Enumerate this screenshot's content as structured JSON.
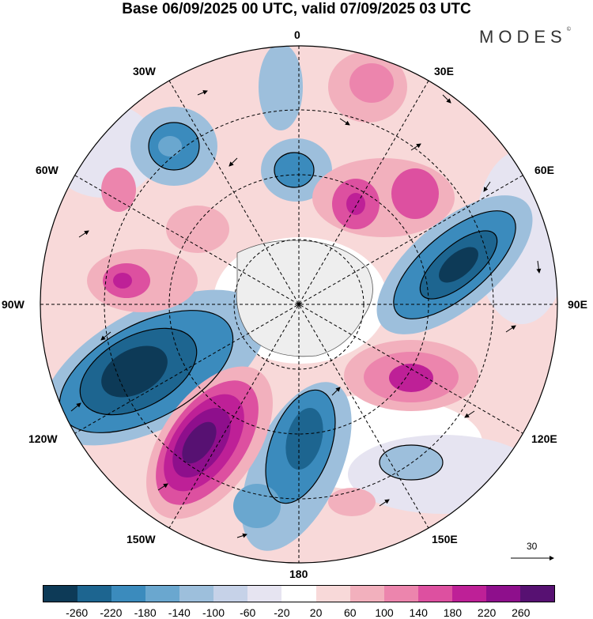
{
  "title": "Base 06/09/2025 00 UTC, valid 07/09/2025 03 UTC",
  "brand": "MODES",
  "brand_mark": "©",
  "longitude_labels": {
    "l0": "0",
    "l30e": "30E",
    "l60e": "60E",
    "l90e": "90E",
    "l120e": "120E",
    "l150e": "150E",
    "l180": "180",
    "l150w": "150W",
    "l120w": "120W",
    "l90w": "90W",
    "l60w": "60W",
    "l30w": "30W"
  },
  "reference_vector": {
    "label": "30"
  },
  "colorbar": {
    "colors": [
      "#0d3a57",
      "#1d6590",
      "#3b8bbd",
      "#6aa7cf",
      "#9dbfdc",
      "#c6d2e8",
      "#e6e4f1",
      "#ffffff",
      "#f8d9d9",
      "#f2b0bd",
      "#ec85ad",
      "#dd50a0",
      "#be2097",
      "#8e0f8c",
      "#571172"
    ],
    "ticks": [
      "-260",
      "-220",
      "-180",
      "-140",
      "-100",
      "-60",
      "-20",
      "20",
      "60",
      "100",
      "140",
      "180",
      "220",
      "260"
    ]
  }
}
